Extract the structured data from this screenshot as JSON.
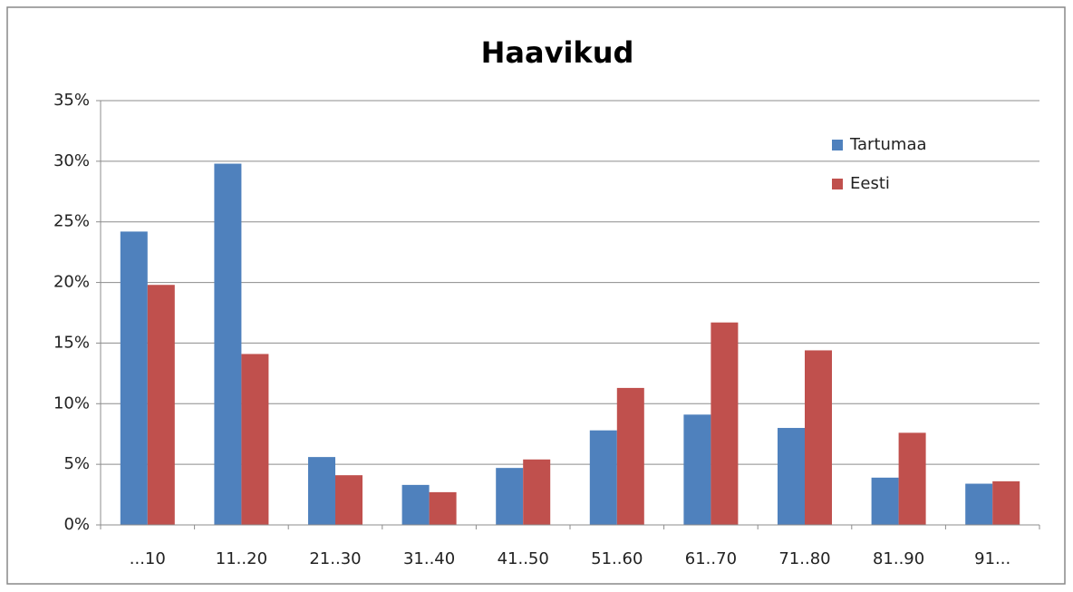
{
  "chart_data": {
    "type": "bar",
    "title": "Haavikud",
    "categories": [
      "...10",
      "11..20",
      "21..30",
      "31..40",
      "41..50",
      "51..60",
      "61..70",
      "71..80",
      "81..90",
      "91..."
    ],
    "series": [
      {
        "name": "Tartumaa",
        "color": "#4f81bd",
        "values": [
          24.2,
          29.8,
          5.6,
          3.3,
          4.7,
          7.8,
          9.1,
          8.0,
          3.9,
          3.4
        ]
      },
      {
        "name": "Eesti",
        "color": "#c0504d",
        "values": [
          19.8,
          14.1,
          4.1,
          2.7,
          5.4,
          11.3,
          16.7,
          14.4,
          7.6,
          3.6
        ]
      }
    ],
    "ylim": [
      0,
      35
    ],
    "yticks": [
      {
        "value": 0,
        "label": "0%"
      },
      {
        "value": 5,
        "label": "5%"
      },
      {
        "value": 10,
        "label": "10%"
      },
      {
        "value": 15,
        "label": "15%"
      },
      {
        "value": 20,
        "label": "20%"
      },
      {
        "value": 25,
        "label": "25%"
      },
      {
        "value": 30,
        "label": "30%"
      },
      {
        "value": 35,
        "label": "35%"
      }
    ],
    "grid": true,
    "legend": "top-right"
  }
}
